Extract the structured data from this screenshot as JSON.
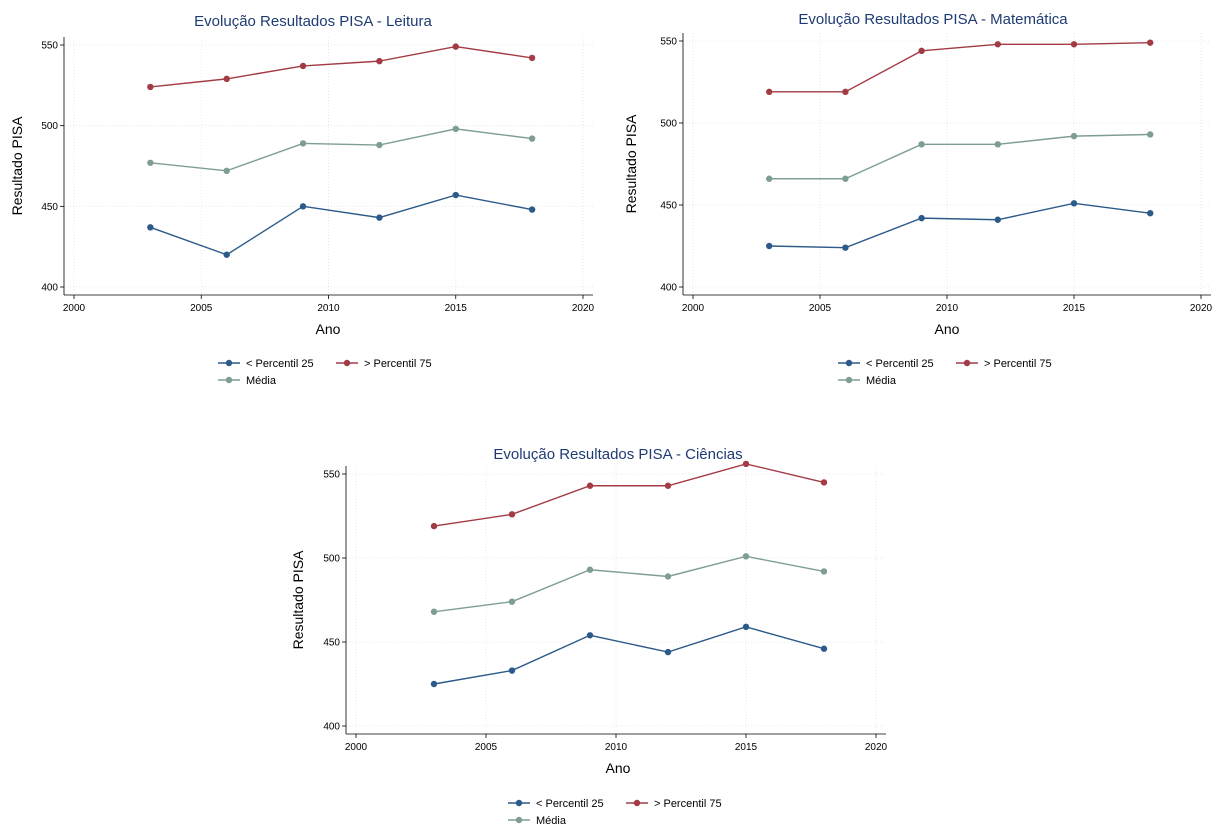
{
  "chart_data": [
    {
      "type": "line",
      "title": "Evolução Resultados PISA - Leitura",
      "xlabel": "Ano",
      "ylabel": "Resultado PISA",
      "xlim": [
        2000,
        2020
      ],
      "ylim": [
        400,
        550
      ],
      "xticks": [
        2000,
        2005,
        2010,
        2015,
        2020
      ],
      "yticks": [
        400,
        450,
        500,
        550
      ],
      "grid": true,
      "legend_position": "bottom",
      "x": [
        2003,
        2006,
        2009,
        2012,
        2015,
        2018
      ],
      "series": [
        {
          "name": "< Percentil 25",
          "color": "#2c5a8a",
          "values": [
            437,
            420,
            450,
            443,
            457,
            448
          ]
        },
        {
          "name": "> Percentil 75",
          "color": "#a33b45",
          "values": [
            524,
            529,
            537,
            540,
            549,
            542
          ]
        },
        {
          "name": "Média",
          "color": "#7e9e92",
          "values": [
            477,
            472,
            489,
            488,
            498,
            492
          ]
        }
      ]
    },
    {
      "type": "line",
      "title": "Evolução Resultados PISA - Matemática",
      "xlabel": "Ano",
      "ylabel": "Resultado PISA",
      "xlim": [
        2000,
        2020
      ],
      "ylim": [
        400,
        550
      ],
      "xticks": [
        2000,
        2005,
        2010,
        2015,
        2020
      ],
      "yticks": [
        400,
        450,
        500,
        550
      ],
      "grid": true,
      "legend_position": "bottom",
      "x": [
        2003,
        2006,
        2009,
        2012,
        2015,
        2018
      ],
      "series": [
        {
          "name": "< Percentil 25",
          "color": "#2c5a8a",
          "values": [
            425,
            424,
            442,
            441,
            451,
            445
          ]
        },
        {
          "name": "> Percentil 75",
          "color": "#a33b45",
          "values": [
            519,
            519,
            544,
            548,
            548,
            549
          ]
        },
        {
          "name": "Média",
          "color": "#7e9e92",
          "values": [
            466,
            466,
            487,
            487,
            492,
            493
          ]
        }
      ]
    },
    {
      "type": "line",
      "title": "Evolução Resultados PISA - Ciências",
      "xlabel": "Ano",
      "ylabel": "Resultado PISA",
      "xlim": [
        2000,
        2020
      ],
      "ylim": [
        400,
        550
      ],
      "xticks": [
        2000,
        2005,
        2010,
        2015,
        2020
      ],
      "yticks": [
        400,
        450,
        500,
        550
      ],
      "grid": true,
      "legend_position": "bottom",
      "x": [
        2003,
        2006,
        2009,
        2012,
        2015,
        2018
      ],
      "series": [
        {
          "name": "< Percentil 25",
          "color": "#2c5a8a",
          "values": [
            425,
            433,
            454,
            444,
            459,
            446
          ]
        },
        {
          "name": "> Percentil 75",
          "color": "#a33b45",
          "values": [
            519,
            526,
            543,
            543,
            556,
            545
          ]
        },
        {
          "name": "Média",
          "color": "#7e9e92",
          "values": [
            468,
            474,
            493,
            489,
            501,
            492
          ]
        }
      ]
    }
  ]
}
